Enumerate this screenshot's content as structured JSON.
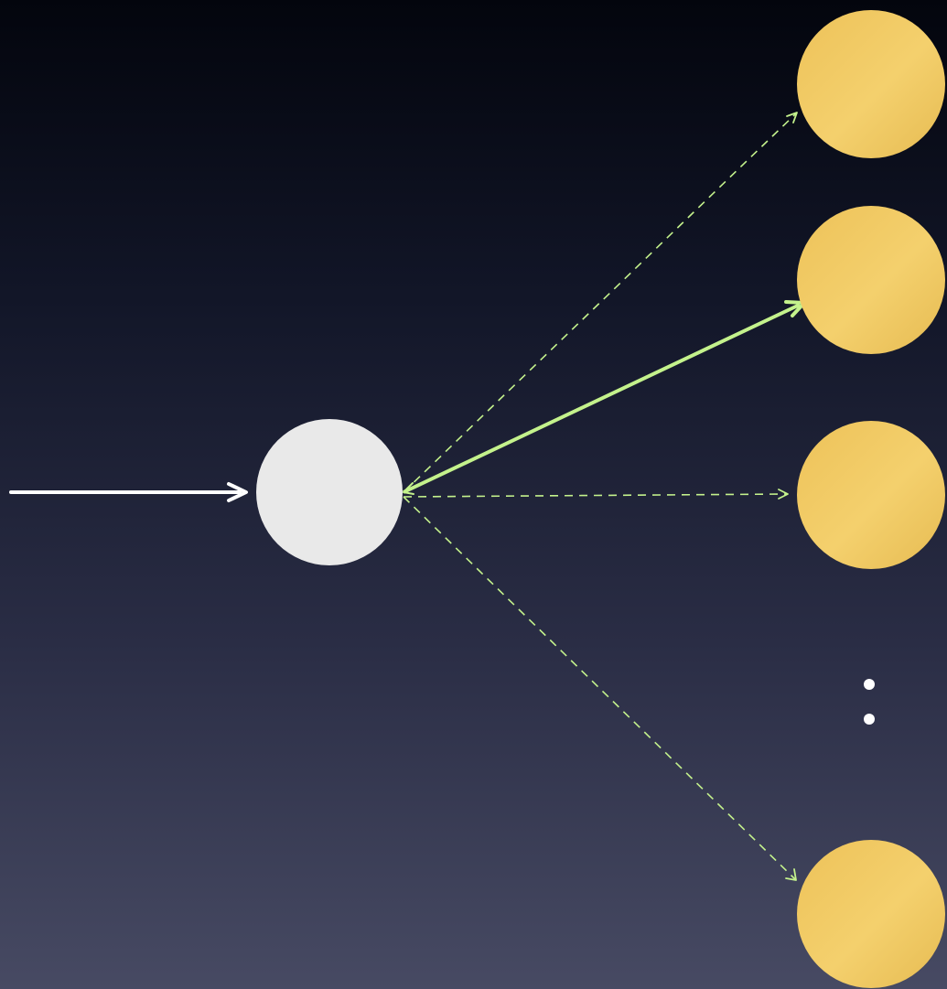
{
  "diagram": {
    "background": {
      "top_color": "#03050d",
      "bottom_color": "#474a63"
    },
    "colors": {
      "input_arrow": "#ffffff",
      "source_node": "#e9e9e9",
      "target_node": "#f2c95e",
      "selected_edge": "#c4f28c",
      "candidate_edge": "#c4f28c",
      "ellipsis_dots": "#ffffff"
    },
    "input_arrow": {
      "label": ""
    },
    "source_node": {
      "label": ""
    },
    "target_nodes": [
      {
        "label": "",
        "edge": "dashed"
      },
      {
        "label": "",
        "edge": "solid"
      },
      {
        "label": "",
        "edge": "dashed"
      },
      {
        "label": "",
        "edge": "dashed"
      }
    ],
    "ellipsis": {
      "symbol": "vertical-dots",
      "count": 2
    }
  }
}
